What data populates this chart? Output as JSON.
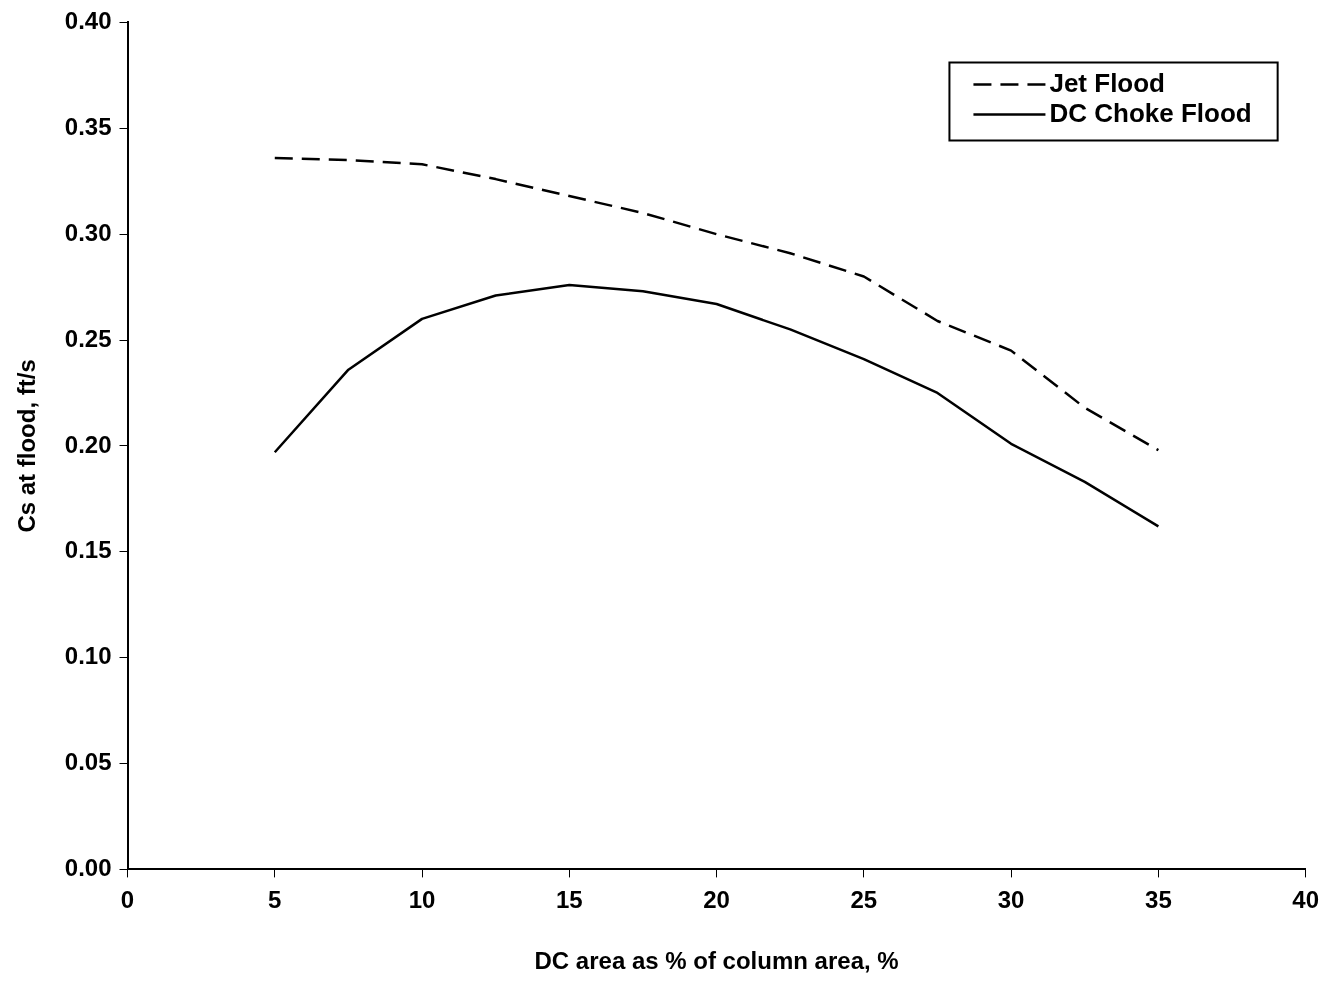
{
  "chart_data": {
    "type": "line",
    "xlabel": "DC area as % of column area, %",
    "ylabel": "Cs at flood, ft/s",
    "x": [
      5,
      7.5,
      10,
      12.5,
      15,
      17.5,
      20,
      22.5,
      25,
      27.5,
      30,
      32.5,
      35
    ],
    "series": [
      {
        "name": "Jet Flood",
        "color": "#000000",
        "line_style": "dashed",
        "values": [
          0.336,
          0.335,
          0.333,
          0.326,
          0.318,
          0.31,
          0.3,
          0.291,
          0.28,
          0.259,
          0.245,
          0.218,
          0.198
        ]
      },
      {
        "name": "DC Choke Flood",
        "color": "#000000",
        "line_style": "solid",
        "values": [
          0.197,
          0.236,
          0.26,
          0.271,
          0.276,
          0.273,
          0.267,
          0.255,
          0.241,
          0.225,
          0.201,
          0.183,
          0.162
        ]
      }
    ],
    "xlim": [
      0,
      40
    ],
    "xticks": [
      0,
      5,
      10,
      15,
      20,
      25,
      30,
      35,
      40
    ],
    "ylim": [
      0,
      0.4
    ],
    "yticks": [
      {
        "value": 0,
        "label": "0.00"
      },
      {
        "value": 0.05,
        "label": "0.05"
      },
      {
        "value": 0.1,
        "label": "0.10"
      },
      {
        "value": 0.15,
        "label": "0.15"
      },
      {
        "value": 0.2,
        "label": "0.20"
      },
      {
        "value": 0.25,
        "label": "0.25"
      },
      {
        "value": 0.3,
        "label": "0.30"
      },
      {
        "value": 0.35,
        "label": "0.35"
      },
      {
        "value": 0.4,
        "label": "0.40"
      }
    ],
    "grid": false,
    "legend": "top right",
    "marker": "none"
  }
}
